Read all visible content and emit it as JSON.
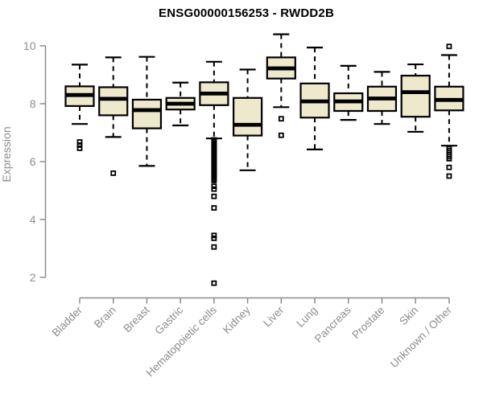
{
  "chart_data": {
    "type": "boxplot",
    "title": "ENSG00000156253 - RWDD2B",
    "xlabel": "",
    "ylabel": "Expression",
    "ylim": [
      2,
      10
    ],
    "yticks": [
      2,
      4,
      6,
      8,
      10
    ],
    "grid": false,
    "legend": false,
    "categories": [
      "Bladder",
      "Brain",
      "Breast",
      "Gastric",
      "Hematopoietic cells",
      "Kidney",
      "Liver",
      "Lung",
      "Pancreas",
      "Prostate",
      "Skin",
      "Unknown / Other"
    ],
    "boxes": [
      {
        "category": "Bladder",
        "whisker_low": 7.3,
        "q1": 7.92,
        "median": 8.3,
        "q3": 8.6,
        "whisker_high": 9.35,
        "outliers": [
          6.68,
          6.57,
          6.46
        ]
      },
      {
        "category": "Brain",
        "whisker_low": 6.85,
        "q1": 7.6,
        "median": 8.17,
        "q3": 8.57,
        "whisker_high": 9.6,
        "outliers": [
          5.6
        ]
      },
      {
        "category": "Breast",
        "whisker_low": 5.85,
        "q1": 7.15,
        "median": 7.78,
        "q3": 8.14,
        "whisker_high": 9.62,
        "outliers": []
      },
      {
        "category": "Gastric",
        "whisker_low": 7.25,
        "q1": 7.8,
        "median": 8.0,
        "q3": 8.2,
        "whisker_high": 8.73,
        "outliers": []
      },
      {
        "category": "Hematopoietic cells",
        "whisker_low": 6.8,
        "q1": 7.95,
        "median": 8.35,
        "q3": 8.74,
        "whisker_high": 9.45,
        "outliers": [
          6.75,
          6.7,
          6.65,
          6.6,
          6.55,
          6.5,
          6.45,
          6.4,
          6.35,
          6.3,
          6.25,
          6.2,
          6.15,
          6.1,
          6.05,
          6.0,
          5.95,
          5.9,
          5.85,
          5.8,
          5.75,
          5.7,
          5.65,
          5.6,
          5.55,
          5.5,
          5.45,
          5.4,
          5.35,
          5.15,
          5.05,
          4.8,
          4.4,
          3.45,
          3.35,
          3.05,
          1.8
        ]
      },
      {
        "category": "Kidney",
        "whisker_low": 5.7,
        "q1": 6.9,
        "median": 7.27,
        "q3": 8.2,
        "whisker_high": 9.18,
        "outliers": []
      },
      {
        "category": "Liver",
        "whisker_low": 7.88,
        "q1": 8.87,
        "median": 9.22,
        "q3": 9.6,
        "whisker_high": 10.4,
        "outliers": [
          7.48,
          6.91
        ]
      },
      {
        "category": "Lung",
        "whisker_low": 6.42,
        "q1": 7.52,
        "median": 8.08,
        "q3": 8.7,
        "whisker_high": 9.94,
        "outliers": []
      },
      {
        "category": "Pancreas",
        "whisker_low": 7.44,
        "q1": 7.75,
        "median": 8.08,
        "q3": 8.36,
        "whisker_high": 9.31,
        "outliers": []
      },
      {
        "category": "Prostate",
        "whisker_low": 7.3,
        "q1": 7.75,
        "median": 8.18,
        "q3": 8.59,
        "whisker_high": 9.1,
        "outliers": []
      },
      {
        "category": "Skin",
        "whisker_low": 7.03,
        "q1": 7.55,
        "median": 8.4,
        "q3": 8.97,
        "whisker_high": 9.36,
        "outliers": []
      },
      {
        "category": "Unknown / Other",
        "whisker_low": 6.55,
        "q1": 7.77,
        "median": 8.13,
        "q3": 8.59,
        "whisker_high": 9.68,
        "outliers": [
          9.98,
          6.45,
          6.38,
          6.31,
          6.24,
          6.17,
          6.1,
          5.8,
          5.5
        ]
      }
    ],
    "colors": {
      "box_fill": "#EEE8CC",
      "box_border": "#000000",
      "median": "#000000",
      "whisker": "#000000",
      "outlier": "#000000",
      "axis": "#8c8c8c",
      "title": "#000000",
      "background": "#ffffff"
    }
  }
}
